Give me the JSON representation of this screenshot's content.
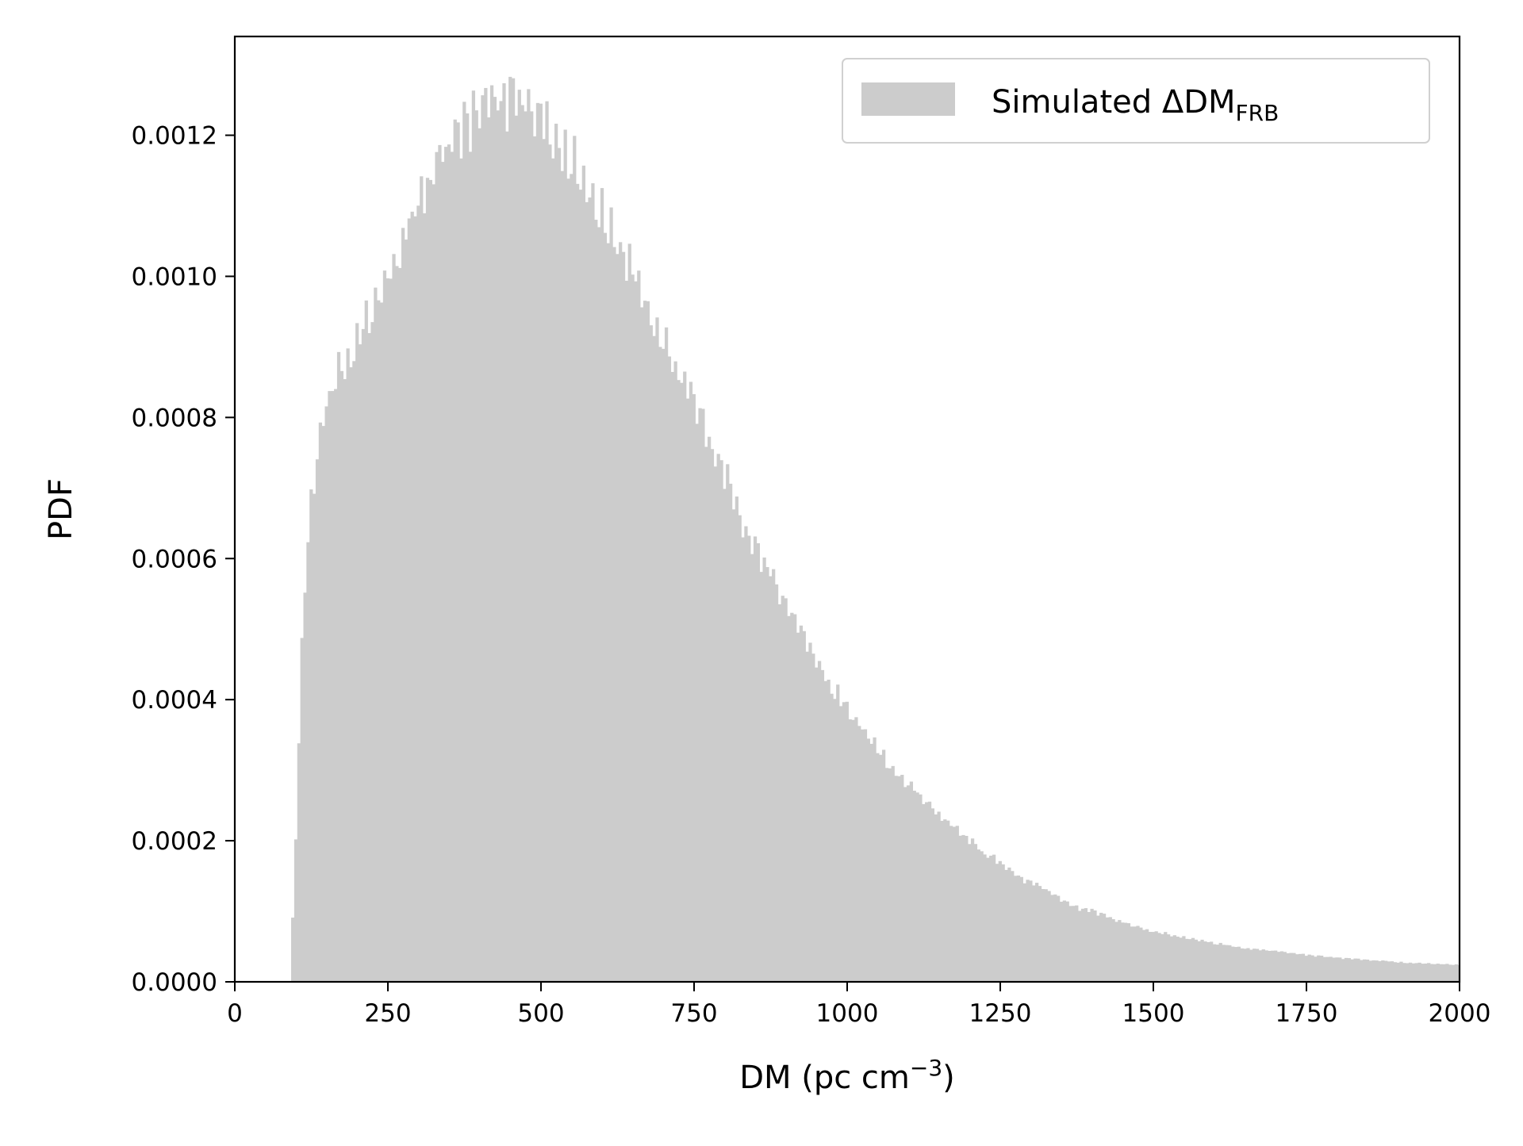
{
  "chart_data": {
    "type": "bar",
    "title": "",
    "xlabel": "DM (pc cm",
    "xlabel_sup": "−3",
    "xlabel_close": ")",
    "ylabel": "PDF",
    "xlim": [
      0,
      2000
    ],
    "ylim": [
      0,
      0.00134
    ],
    "grid": false,
    "bar_color": "#cccccc",
    "xticks": [
      {
        "value": 0,
        "label": "0"
      },
      {
        "value": 250,
        "label": "250"
      },
      {
        "value": 500,
        "label": "500"
      },
      {
        "value": 750,
        "label": "750"
      },
      {
        "value": 1000,
        "label": "1000"
      },
      {
        "value": 1250,
        "label": "1250"
      },
      {
        "value": 1500,
        "label": "1500"
      },
      {
        "value": 1750,
        "label": "1750"
      },
      {
        "value": 2000,
        "label": "2000"
      }
    ],
    "yticks": [
      {
        "value": 0.0,
        "label": "0.0000"
      },
      {
        "value": 0.0002,
        "label": "0.0002"
      },
      {
        "value": 0.0004,
        "label": "0.0004"
      },
      {
        "value": 0.0006,
        "label": "0.0006"
      },
      {
        "value": 0.0008,
        "label": "0.0008"
      },
      {
        "value": 0.001,
        "label": "0.0010"
      },
      {
        "value": 0.0012,
        "label": "0.0012"
      }
    ],
    "legend": {
      "position": "top-right",
      "series_name": "Simulated ΔDM",
      "series_name_sub": "FRB"
    },
    "bin_width": 5,
    "x": [
      92,
      100,
      108,
      115,
      125,
      135,
      150,
      165,
      175,
      190,
      200,
      225,
      250,
      275,
      300,
      325,
      350,
      375,
      400,
      425,
      450,
      475,
      500,
      525,
      550,
      575,
      600,
      625,
      650,
      675,
      700,
      725,
      750,
      775,
      800,
      825,
      850,
      875,
      900,
      925,
      950,
      975,
      1000,
      1025,
      1050,
      1075,
      1100,
      1125,
      1150,
      1175,
      1200,
      1225,
      1250,
      1275,
      1300,
      1325,
      1350,
      1375,
      1400,
      1425,
      1450,
      1475,
      1500,
      1550,
      1600,
      1650,
      1700,
      1750,
      1800,
      1850,
      1900,
      1950,
      2000
    ],
    "y": [
      3e-05,
      0.00022,
      0.00045,
      0.00058,
      0.00068,
      0.00075,
      0.00082,
      0.00087,
      0.00087,
      0.00088,
      0.00091,
      0.00096,
      0.001,
      0.00105,
      0.0011,
      0.00114,
      0.00118,
      0.00121,
      0.00123,
      0.00124,
      0.00125,
      0.00124,
      0.00122,
      0.0012,
      0.00117,
      0.00113,
      0.00109,
      0.00105,
      0.00101,
      0.00096,
      0.00091,
      0.00087,
      0.00082,
      0.00076,
      0.00072,
      0.00066,
      0.00061,
      0.00058,
      0.00053,
      0.00049,
      0.00045,
      0.00042,
      0.00039,
      0.00036,
      0.00033,
      0.0003,
      0.00028,
      0.00026,
      0.00024,
      0.00022,
      0.0002,
      0.00018,
      0.00017,
      0.00015,
      0.00014,
      0.00013,
      0.000115,
      0.000105,
      0.0001,
      9.2e-05,
      8.5e-05,
      7.8e-05,
      7.2e-05,
      6.3e-05,
      5.5e-05,
      4.8e-05,
      4.3e-05,
      3.8e-05,
      3.4e-05,
      3.1e-05,
      2.8e-05,
      2.6e-05,
      2.4e-05
    ]
  }
}
